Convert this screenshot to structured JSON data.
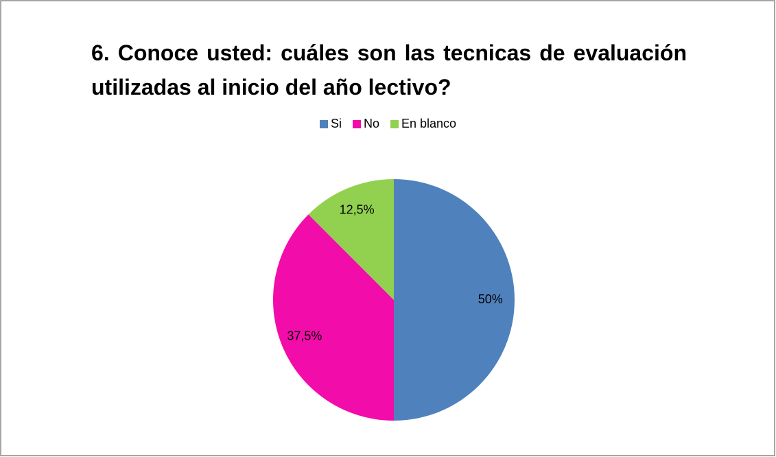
{
  "chart_data": {
    "type": "pie",
    "title": "6. Conoce usted: cuáles son las tecnicas de evaluación utilizadas al inicio del año lectivo?",
    "categories": [
      "Si",
      "No",
      "En blanco"
    ],
    "values": [
      50,
      37.5,
      12.5
    ],
    "value_labels": [
      "50%",
      "37,5%",
      "12,5%"
    ],
    "colors": [
      "#4f81bd",
      "#f20ca9",
      "#92d050"
    ],
    "legend": "top"
  }
}
